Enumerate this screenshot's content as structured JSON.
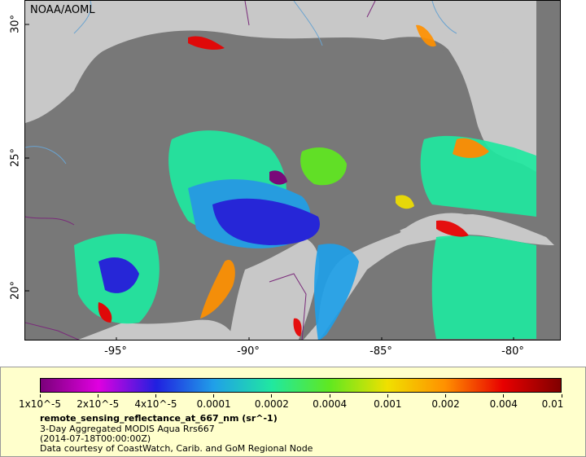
{
  "map": {
    "credit": "NOAA/AOML",
    "lat_labels": [
      {
        "text": "30°",
        "lat": 30
      },
      {
        "text": "25°",
        "lat": 25
      },
      {
        "text": "20°",
        "lat": 20
      }
    ],
    "lon_labels": [
      {
        "text": "-95°",
        "lon": -95
      },
      {
        "text": "-90°",
        "lon": -90
      },
      {
        "text": "-85°",
        "lon": -85
      },
      {
        "text": "-80°",
        "lon": -80
      }
    ],
    "colors": {
      "land": "#c8c8c8",
      "no_data": "#787878",
      "borders": "#7a2a7a",
      "rivers": "#6aa3d0"
    }
  },
  "legend": {
    "tick_labels": [
      "1x10^-5",
      "2x10^-5",
      "4x10^-5",
      "0.0001",
      "0.0002",
      "0.0004",
      "0.001",
      "0.002",
      "0.004",
      "0.01"
    ],
    "colormap": [
      "#7a007a",
      "#e000e0",
      "#2020e0",
      "#20a0e8",
      "#20e8a0",
      "#60e820",
      "#f0e000",
      "#ff9000",
      "#e80000",
      "#800000"
    ],
    "title": "remote_sensing_reflectance_at_667_nm (sr^-1)",
    "line1": "3-Day Aggregated MODIS Aqua Rrs667",
    "line2": "(2014-07-18T00:00:00Z)",
    "line3": "Data courtesy of CoastWatch, Carib. and GoM Regional Node"
  }
}
